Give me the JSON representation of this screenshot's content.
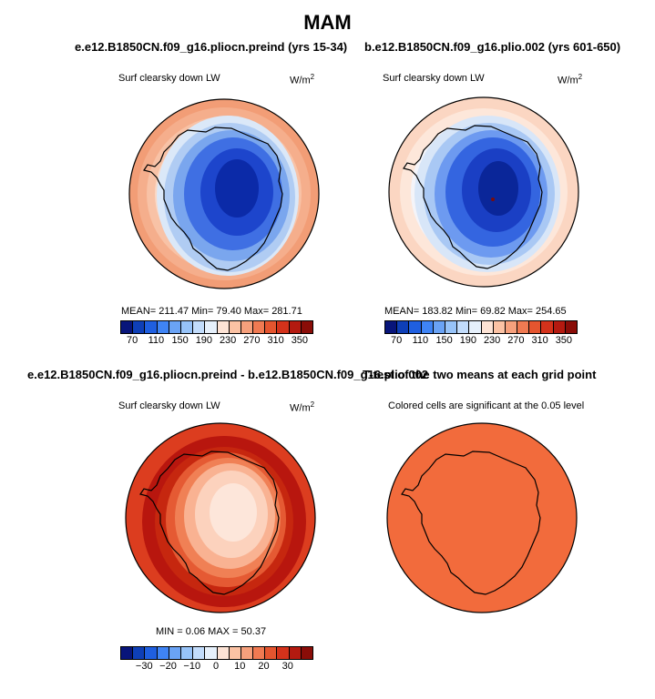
{
  "title": "MAM",
  "panels": [
    {
      "name": "preind",
      "title": "e.e12.B1850CN.f09_g16.pliocn.preind (yrs 15-34)",
      "variable": "Surf clearsky down LW",
      "units": "W/m",
      "units_exp": "2",
      "stats": "MEAN= 211.47    Min=  79.40   Max= 281.71"
    },
    {
      "name": "plio",
      "title": "b.e12.B1850CN.f09_g16.plio.002 (yrs 601-650)",
      "variable": "Surf clearsky down LW",
      "units": "W/m",
      "units_exp": "2",
      "stats": "MEAN= 183.82    Min=  69.82   Max= 254.65"
    },
    {
      "name": "diff",
      "title": "e.e12.B1850CN.f09_g16.pliocn.preind - b.e12.B1850CN.f09_g16.plio.002",
      "variable": "Surf clearsky down LW",
      "units": "W/m",
      "units_exp": "2",
      "stats": "MIN =    0.06  MAX =  50.37"
    },
    {
      "name": "ttest",
      "title": "T-test of the two means at each grid point",
      "variable": "Colored cells are significant at the 0.05 level"
    }
  ],
  "colorbar_abs": {
    "ticks": [
      "70",
      "110",
      "150",
      "190",
      "230",
      "270",
      "310",
      "350"
    ],
    "colors": [
      "#08157a",
      "#0e3fb7",
      "#1f5fe0",
      "#3f84f5",
      "#6aa3f5",
      "#97c3f8",
      "#c2dcfb",
      "#e6f0fb",
      "#fde3d5",
      "#fbc2a4",
      "#f6a07c",
      "#f07a52",
      "#e5552f",
      "#d4321b",
      "#b41a10",
      "#8a0d08"
    ]
  },
  "colorbar_diff": {
    "ticks": [
      "−30",
      "−20",
      "−10",
      "0",
      "10",
      "20",
      "30"
    ],
    "colors": [
      "#08157a",
      "#0e3fb7",
      "#1f5fe0",
      "#3f84f5",
      "#6aa3f5",
      "#97c3f8",
      "#c2dcfb",
      "#e6f0fb",
      "#fde3d5",
      "#fbc2a4",
      "#f6a07c",
      "#f07a52",
      "#e5552f",
      "#d4321b",
      "#b41a10",
      "#8a0d08"
    ]
  }
}
